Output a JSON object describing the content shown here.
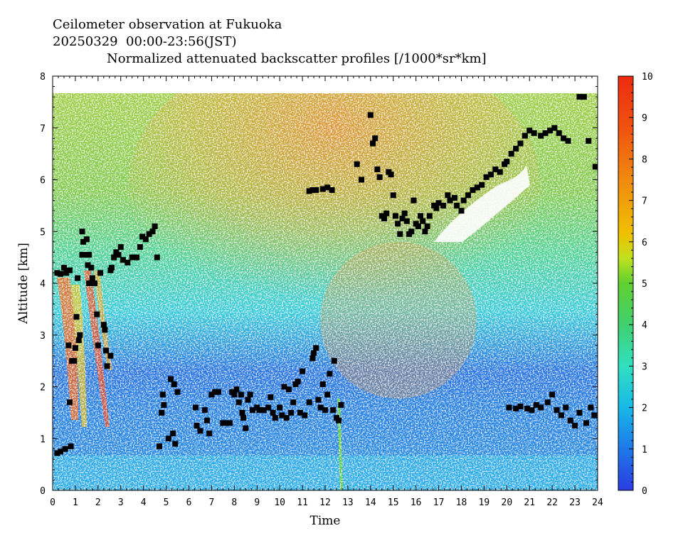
{
  "header": {
    "line1": "Ceilometer observation at Fukuoka",
    "line2": "20250329  00:00-23:56(JST)",
    "line3": "Normalized attenuated backscatter profiles [/1000*sr*km]"
  },
  "chart_data": {
    "type": "heatmap",
    "xlabel": "Time",
    "ylabel": "Altitude [km]",
    "xlim": [
      0,
      24
    ],
    "ylim": [
      0,
      8
    ],
    "x_ticks": [
      0,
      1,
      2,
      3,
      4,
      5,
      6,
      7,
      8,
      9,
      10,
      11,
      12,
      13,
      14,
      15,
      16,
      17,
      18,
      19,
      20,
      21,
      22,
      23,
      24
    ],
    "y_ticks": [
      0,
      1,
      2,
      3,
      4,
      5,
      6,
      7,
      8
    ],
    "data_top_altitude": 7.65,
    "colorbar": {
      "min": 0,
      "max": 10,
      "ticks": [
        0,
        1,
        2,
        3,
        4,
        5,
        6,
        7,
        8,
        9,
        10
      ],
      "colors": [
        "#2a3ce0",
        "#1e78e8",
        "#18b8e8",
        "#30e0c0",
        "#40d070",
        "#60d030",
        "#c0e020",
        "#f0c000",
        "#f08a10",
        "#f05010",
        "#ee2a10"
      ]
    },
    "cloud_base_series": {
      "name": "",
      "marker": "square",
      "color": "#000000",
      "points": [
        [
          0.2,
          0.72
        ],
        [
          0.35,
          0.75
        ],
        [
          0.55,
          0.8
        ],
        [
          0.8,
          0.85
        ],
        [
          0.2,
          4.2
        ],
        [
          0.35,
          4.18
        ],
        [
          0.5,
          4.3
        ],
        [
          0.6,
          4.2
        ],
        [
          0.75,
          4.25
        ],
        [
          0.7,
          2.8
        ],
        [
          0.75,
          1.7
        ],
        [
          0.85,
          2.5
        ],
        [
          0.95,
          2.5
        ],
        [
          1.0,
          2.75
        ],
        [
          1.05,
          3.35
        ],
        [
          1.15,
          2.9
        ],
        [
          1.2,
          3.0
        ],
        [
          1.1,
          4.1
        ],
        [
          1.3,
          4.55
        ],
        [
          1.35,
          4.8
        ],
        [
          1.3,
          5.0
        ],
        [
          1.45,
          4.55
        ],
        [
          1.5,
          4.85
        ],
        [
          1.55,
          4.35
        ],
        [
          1.6,
          4.55
        ],
        [
          1.6,
          4.0
        ],
        [
          1.7,
          4.3
        ],
        [
          1.75,
          4.1
        ],
        [
          1.85,
          4.0
        ],
        [
          1.95,
          3.4
        ],
        [
          2.0,
          2.8
        ],
        [
          2.1,
          4.2
        ],
        [
          2.25,
          3.2
        ],
        [
          2.3,
          3.1
        ],
        [
          2.35,
          2.7
        ],
        [
          2.4,
          2.4
        ],
        [
          2.55,
          2.6
        ],
        [
          2.55,
          4.25
        ],
        [
          2.6,
          4.3
        ],
        [
          2.7,
          4.5
        ],
        [
          2.8,
          4.6
        ],
        [
          2.9,
          4.55
        ],
        [
          3.0,
          4.7
        ],
        [
          3.1,
          4.45
        ],
        [
          3.3,
          4.4
        ],
        [
          3.5,
          4.5
        ],
        [
          3.7,
          4.5
        ],
        [
          3.85,
          4.7
        ],
        [
          3.95,
          4.9
        ],
        [
          4.1,
          4.85
        ],
        [
          4.25,
          4.95
        ],
        [
          4.4,
          5.0
        ],
        [
          4.5,
          5.1
        ],
        [
          4.6,
          4.5
        ],
        [
          4.7,
          0.85
        ],
        [
          4.8,
          1.5
        ],
        [
          4.85,
          1.85
        ],
        [
          4.9,
          1.65
        ],
        [
          5.1,
          1.0
        ],
        [
          5.2,
          2.15
        ],
        [
          5.3,
          1.1
        ],
        [
          5.35,
          2.05
        ],
        [
          5.4,
          0.9
        ],
        [
          5.5,
          1.9
        ],
        [
          6.3,
          1.6
        ],
        [
          6.35,
          1.25
        ],
        [
          6.5,
          1.15
        ],
        [
          6.7,
          1.55
        ],
        [
          6.8,
          1.35
        ],
        [
          6.9,
          1.1
        ],
        [
          7.0,
          1.85
        ],
        [
          7.15,
          1.9
        ],
        [
          7.3,
          1.9
        ],
        [
          7.5,
          1.3
        ],
        [
          7.7,
          1.3
        ],
        [
          7.8,
          1.3
        ],
        [
          7.9,
          1.9
        ],
        [
          8.0,
          1.85
        ],
        [
          8.1,
          1.95
        ],
        [
          8.2,
          1.7
        ],
        [
          8.3,
          1.85
        ],
        [
          8.35,
          1.5
        ],
        [
          8.4,
          1.4
        ],
        [
          8.5,
          1.2
        ],
        [
          8.6,
          1.75
        ],
        [
          8.7,
          1.85
        ],
        [
          8.8,
          1.55
        ],
        [
          9.0,
          1.6
        ],
        [
          9.1,
          1.55
        ],
        [
          9.2,
          1.55
        ],
        [
          9.3,
          1.55
        ],
        [
          9.5,
          1.6
        ],
        [
          9.6,
          1.8
        ],
        [
          9.7,
          1.5
        ],
        [
          9.8,
          1.4
        ],
        [
          10.0,
          1.6
        ],
        [
          10.1,
          1.45
        ],
        [
          10.2,
          2.0
        ],
        [
          10.3,
          1.4
        ],
        [
          10.4,
          1.95
        ],
        [
          10.5,
          1.5
        ],
        [
          10.6,
          1.7
        ],
        [
          10.7,
          2.05
        ],
        [
          10.8,
          2.1
        ],
        [
          10.9,
          1.5
        ],
        [
          11.0,
          2.3
        ],
        [
          11.1,
          1.45
        ],
        [
          11.3,
          1.7
        ],
        [
          11.45,
          2.55
        ],
        [
          11.5,
          2.65
        ],
        [
          11.6,
          2.75
        ],
        [
          11.7,
          1.75
        ],
        [
          11.8,
          1.6
        ],
        [
          11.9,
          2.05
        ],
        [
          12.0,
          1.55
        ],
        [
          12.1,
          1.85
        ],
        [
          12.2,
          2.25
        ],
        [
          12.35,
          1.55
        ],
        [
          12.4,
          2.5
        ],
        [
          12.5,
          1.4
        ],
        [
          12.6,
          1.35
        ],
        [
          12.7,
          1.65
        ],
        [
          11.3,
          5.78
        ],
        [
          11.45,
          5.8
        ],
        [
          11.6,
          5.8
        ],
        [
          11.9,
          5.82
        ],
        [
          12.1,
          5.85
        ],
        [
          12.3,
          5.8
        ],
        [
          13.4,
          6.3
        ],
        [
          13.6,
          6.0
        ],
        [
          14.0,
          7.25
        ],
        [
          14.1,
          6.7
        ],
        [
          14.2,
          6.8
        ],
        [
          14.3,
          6.2
        ],
        [
          14.4,
          6.05
        ],
        [
          14.5,
          5.3
        ],
        [
          14.6,
          5.25
        ],
        [
          14.7,
          5.35
        ],
        [
          14.8,
          6.15
        ],
        [
          14.9,
          6.1
        ],
        [
          15.0,
          5.7
        ],
        [
          15.1,
          5.3
        ],
        [
          15.2,
          5.15
        ],
        [
          15.3,
          4.95
        ],
        [
          15.4,
          5.25
        ],
        [
          15.5,
          5.35
        ],
        [
          15.6,
          5.2
        ],
        [
          15.7,
          4.95
        ],
        [
          15.8,
          5.0
        ],
        [
          15.9,
          5.6
        ],
        [
          16.0,
          5.15
        ],
        [
          16.1,
          5.1
        ],
        [
          16.2,
          5.3
        ],
        [
          16.3,
          5.2
        ],
        [
          16.4,
          5.0
        ],
        [
          16.5,
          5.1
        ],
        [
          16.6,
          5.3
        ],
        [
          16.8,
          5.5
        ],
        [
          16.9,
          5.45
        ],
        [
          17.0,
          5.55
        ],
        [
          17.2,
          5.5
        ],
        [
          17.4,
          5.7
        ],
        [
          17.5,
          5.6
        ],
        [
          17.7,
          5.65
        ],
        [
          17.8,
          5.5
        ],
        [
          18.0,
          5.4
        ],
        [
          18.1,
          5.6
        ],
        [
          18.3,
          5.7
        ],
        [
          18.5,
          5.8
        ],
        [
          18.7,
          5.85
        ],
        [
          18.9,
          5.9
        ],
        [
          19.1,
          6.05
        ],
        [
          19.3,
          6.1
        ],
        [
          19.5,
          6.2
        ],
        [
          19.7,
          6.15
        ],
        [
          19.9,
          6.3
        ],
        [
          20.0,
          6.35
        ],
        [
          20.2,
          6.5
        ],
        [
          20.4,
          6.6
        ],
        [
          20.6,
          6.7
        ],
        [
          20.8,
          6.85
        ],
        [
          21.0,
          6.95
        ],
        [
          21.2,
          6.9
        ],
        [
          21.5,
          6.85
        ],
        [
          21.7,
          6.9
        ],
        [
          21.9,
          6.95
        ],
        [
          22.1,
          7.0
        ],
        [
          22.3,
          6.9
        ],
        [
          22.5,
          6.8
        ],
        [
          22.7,
          6.75
        ],
        [
          23.2,
          7.6
        ],
        [
          23.4,
          7.6
        ],
        [
          23.6,
          6.75
        ],
        [
          23.9,
          6.25
        ],
        [
          20.1,
          1.6
        ],
        [
          20.4,
          1.58
        ],
        [
          20.6,
          1.62
        ],
        [
          20.9,
          1.58
        ],
        [
          21.1,
          1.55
        ],
        [
          21.3,
          1.65
        ],
        [
          21.5,
          1.6
        ],
        [
          21.8,
          1.7
        ],
        [
          22.0,
          1.85
        ],
        [
          22.2,
          1.55
        ],
        [
          22.4,
          1.45
        ],
        [
          22.6,
          1.6
        ],
        [
          22.8,
          1.35
        ],
        [
          23.0,
          1.25
        ],
        [
          23.2,
          1.5
        ],
        [
          23.5,
          1.3
        ],
        [
          23.7,
          1.6
        ],
        [
          23.85,
          1.45
        ]
      ]
    }
  }
}
